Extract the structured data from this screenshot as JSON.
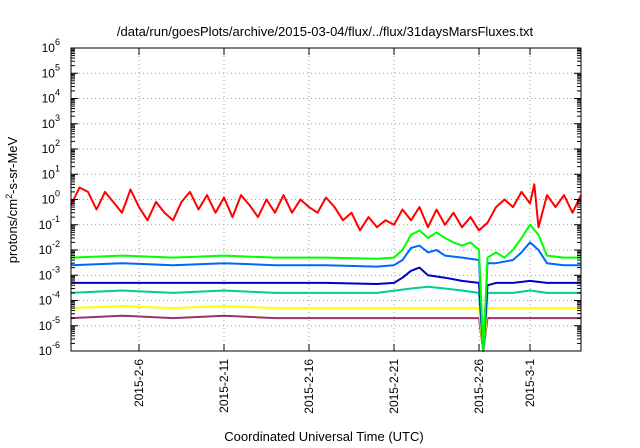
{
  "chart_data": {
    "type": "line",
    "title": "/data/run/goesPlots/archive/2015-03-04/flux/../flux/31daysMarsFluxes.txt",
    "xlabel": "Coordinated Universal Time (UTC)",
    "ylabel_parts": {
      "base": "protons/cm",
      "sup": "2",
      "rest": "-s-sr-MeV"
    },
    "yscale": "log",
    "ylim_exponents": [
      -6,
      6
    ],
    "ytick_base": "10",
    "ytick_exponents": [
      "-6",
      "-5",
      "-4",
      "-3",
      "-2",
      "-1",
      "0",
      "1",
      "2",
      "3",
      "4",
      "5",
      "6"
    ],
    "xlim": [
      "2015-02-02",
      "2015-03-04"
    ],
    "x_ticks": [
      {
        "label": "2015-2-6",
        "date": "2015-02-06"
      },
      {
        "label": "2015-2-11",
        "date": "2015-02-11"
      },
      {
        "label": "2015-2-16",
        "date": "2015-02-16"
      },
      {
        "label": "2015-2-21",
        "date": "2015-02-21"
      },
      {
        "label": "2015-2-26",
        "date": "2015-02-26"
      },
      {
        "label": "2015-3-1",
        "date": "2015-03-01"
      }
    ],
    "grid": true,
    "colors": [
      "#ff0000",
      "#00ff00",
      "#0066ff",
      "#0000cc",
      "#00cc99",
      "#ffff00",
      "#993366"
    ],
    "series": [
      {
        "color": "#ff0000",
        "values": [
          {
            "x": "2015-02-02",
            "y": 0.6
          },
          {
            "x": "2015-02-02T12",
            "y": 3.0
          },
          {
            "x": "2015-02-03",
            "y": 2.0
          },
          {
            "x": "2015-02-03T12",
            "y": 0.4
          },
          {
            "x": "2015-02-04",
            "y": 2.0
          },
          {
            "x": "2015-02-05",
            "y": 0.3
          },
          {
            "x": "2015-02-05T12",
            "y": 2.5
          },
          {
            "x": "2015-02-06",
            "y": 0.5
          },
          {
            "x": "2015-02-06T12",
            "y": 0.15
          },
          {
            "x": "2015-02-07",
            "y": 0.8
          },
          {
            "x": "2015-02-07T12",
            "y": 0.3
          },
          {
            "x": "2015-02-08",
            "y": 0.15
          },
          {
            "x": "2015-02-08T12",
            "y": 0.8
          },
          {
            "x": "2015-02-09",
            "y": 2.0
          },
          {
            "x": "2015-02-09T12",
            "y": 0.4
          },
          {
            "x": "2015-02-10",
            "y": 1.5
          },
          {
            "x": "2015-02-10T12",
            "y": 0.3
          },
          {
            "x": "2015-02-11",
            "y": 1.2
          },
          {
            "x": "2015-02-11T12",
            "y": 0.2
          },
          {
            "x": "2015-02-12",
            "y": 1.5
          },
          {
            "x": "2015-02-12T12",
            "y": 0.6
          },
          {
            "x": "2015-02-13",
            "y": 0.2
          },
          {
            "x": "2015-02-13T12",
            "y": 1.0
          },
          {
            "x": "2015-02-14",
            "y": 0.3
          },
          {
            "x": "2015-02-14T12",
            "y": 1.5
          },
          {
            "x": "2015-02-15",
            "y": 0.3
          },
          {
            "x": "2015-02-15T12",
            "y": 1.0
          },
          {
            "x": "2015-02-16",
            "y": 0.5
          },
          {
            "x": "2015-02-16T12",
            "y": 0.3
          },
          {
            "x": "2015-02-17",
            "y": 1.2
          },
          {
            "x": "2015-02-17T12",
            "y": 0.5
          },
          {
            "x": "2015-02-18",
            "y": 0.15
          },
          {
            "x": "2015-02-18T12",
            "y": 0.3
          },
          {
            "x": "2015-02-19",
            "y": 0.06
          },
          {
            "x": "2015-02-19T12",
            "y": 0.2
          },
          {
            "x": "2015-02-20",
            "y": 0.08
          },
          {
            "x": "2015-02-20T12",
            "y": 0.15
          },
          {
            "x": "2015-02-21",
            "y": 0.1
          },
          {
            "x": "2015-02-21T12",
            "y": 0.4
          },
          {
            "x": "2015-02-22",
            "y": 0.15
          },
          {
            "x": "2015-02-22T12",
            "y": 0.5
          },
          {
            "x": "2015-02-23",
            "y": 0.08
          },
          {
            "x": "2015-02-23T12",
            "y": 0.4
          },
          {
            "x": "2015-02-24",
            "y": 0.1
          },
          {
            "x": "2015-02-24T12",
            "y": 0.3
          },
          {
            "x": "2015-02-25",
            "y": 0.08
          },
          {
            "x": "2015-02-25T12",
            "y": 0.2
          },
          {
            "x": "2015-02-26",
            "y": 0.06
          },
          {
            "x": "2015-02-26T12",
            "y": 0.12
          },
          {
            "x": "2015-02-27",
            "y": 0.5
          },
          {
            "x": "2015-02-27T12",
            "y": 1.0
          },
          {
            "x": "2015-02-28",
            "y": 0.5
          },
          {
            "x": "2015-02-28T12",
            "y": 2.0
          },
          {
            "x": "2015-03-01",
            "y": 0.7
          },
          {
            "x": "2015-03-01T06",
            "y": 4.0
          },
          {
            "x": "2015-03-01T12",
            "y": 0.08
          },
          {
            "x": "2015-03-02",
            "y": 1.5
          },
          {
            "x": "2015-03-02T12",
            "y": 0.5
          },
          {
            "x": "2015-03-03",
            "y": 1.5
          },
          {
            "x": "2015-03-03T12",
            "y": 0.3
          },
          {
            "x": "2015-03-04",
            "y": 1.5
          }
        ]
      },
      {
        "color": "#00ff00",
        "values": [
          {
            "x": "2015-02-02",
            "y": 0.005
          },
          {
            "x": "2015-02-05",
            "y": 0.006
          },
          {
            "x": "2015-02-08",
            "y": 0.005
          },
          {
            "x": "2015-02-11",
            "y": 0.006
          },
          {
            "x": "2015-02-14",
            "y": 0.005
          },
          {
            "x": "2015-02-17",
            "y": 0.005
          },
          {
            "x": "2015-02-20",
            "y": 0.0045
          },
          {
            "x": "2015-02-21",
            "y": 0.005
          },
          {
            "x": "2015-02-21T12",
            "y": 0.01
          },
          {
            "x": "2015-02-22",
            "y": 0.04
          },
          {
            "x": "2015-02-22T12",
            "y": 0.06
          },
          {
            "x": "2015-02-23",
            "y": 0.03
          },
          {
            "x": "2015-02-23T12",
            "y": 0.05
          },
          {
            "x": "2015-02-24",
            "y": 0.03
          },
          {
            "x": "2015-02-24T12",
            "y": 0.02
          },
          {
            "x": "2015-02-25",
            "y": 0.015
          },
          {
            "x": "2015-02-25T12",
            "y": 0.02
          },
          {
            "x": "2015-02-26",
            "y": 0.01
          },
          {
            "x": "2015-02-26T06",
            "y": 1e-06
          },
          {
            "x": "2015-02-26T12",
            "y": 0.005
          },
          {
            "x": "2015-02-27",
            "y": 0.008
          },
          {
            "x": "2015-02-27T12",
            "y": 0.005
          },
          {
            "x": "2015-02-28",
            "y": 0.01
          },
          {
            "x": "2015-02-28T12",
            "y": 0.03
          },
          {
            "x": "2015-03-01",
            "y": 0.1
          },
          {
            "x": "2015-03-01T12",
            "y": 0.04
          },
          {
            "x": "2015-03-02",
            "y": 0.006
          },
          {
            "x": "2015-03-03",
            "y": 0.005
          },
          {
            "x": "2015-03-04",
            "y": 0.005
          }
        ]
      },
      {
        "color": "#0066ff",
        "values": [
          {
            "x": "2015-02-02",
            "y": 0.0025
          },
          {
            "x": "2015-02-05",
            "y": 0.003
          },
          {
            "x": "2015-02-08",
            "y": 0.0025
          },
          {
            "x": "2015-02-11",
            "y": 0.003
          },
          {
            "x": "2015-02-14",
            "y": 0.0025
          },
          {
            "x": "2015-02-17",
            "y": 0.0025
          },
          {
            "x": "2015-02-20",
            "y": 0.0022
          },
          {
            "x": "2015-02-21",
            "y": 0.0025
          },
          {
            "x": "2015-02-21T12",
            "y": 0.004
          },
          {
            "x": "2015-02-22",
            "y": 0.012
          },
          {
            "x": "2015-02-22T12",
            "y": 0.015
          },
          {
            "x": "2015-02-23",
            "y": 0.008
          },
          {
            "x": "2015-02-23T12",
            "y": 0.01
          },
          {
            "x": "2015-02-24",
            "y": 0.006
          },
          {
            "x": "2015-02-25",
            "y": 0.005
          },
          {
            "x": "2015-02-26",
            "y": 0.004
          },
          {
            "x": "2015-02-26T06",
            "y": 1e-06
          },
          {
            "x": "2015-02-26T12",
            "y": 0.003
          },
          {
            "x": "2015-02-27",
            "y": 0.003
          },
          {
            "x": "2015-02-28",
            "y": 0.004
          },
          {
            "x": "2015-02-28T12",
            "y": 0.008
          },
          {
            "x": "2015-03-01",
            "y": 0.02
          },
          {
            "x": "2015-03-01T12",
            "y": 0.01
          },
          {
            "x": "2015-03-02",
            "y": 0.003
          },
          {
            "x": "2015-03-03",
            "y": 0.0025
          },
          {
            "x": "2015-03-04",
            "y": 0.0025
          }
        ]
      },
      {
        "color": "#0000cc",
        "values": [
          {
            "x": "2015-02-02",
            "y": 0.0005
          },
          {
            "x": "2015-02-05",
            "y": 0.0005
          },
          {
            "x": "2015-02-08",
            "y": 0.0005
          },
          {
            "x": "2015-02-11",
            "y": 0.0005
          },
          {
            "x": "2015-02-14",
            "y": 0.0005
          },
          {
            "x": "2015-02-17",
            "y": 0.0005
          },
          {
            "x": "2015-02-20",
            "y": 0.00045
          },
          {
            "x": "2015-02-21",
            "y": 0.0005
          },
          {
            "x": "2015-02-21T12",
            "y": 0.0008
          },
          {
            "x": "2015-02-22",
            "y": 0.0015
          },
          {
            "x": "2015-02-22T12",
            "y": 0.002
          },
          {
            "x": "2015-02-23",
            "y": 0.001
          },
          {
            "x": "2015-02-24",
            "y": 0.0008
          },
          {
            "x": "2015-02-25",
            "y": 0.0006
          },
          {
            "x": "2015-02-26",
            "y": 0.0005
          },
          {
            "x": "2015-02-26T06",
            "y": 1e-06
          },
          {
            "x": "2015-02-26T12",
            "y": 0.0004
          },
          {
            "x": "2015-02-27",
            "y": 0.0005
          },
          {
            "x": "2015-02-28",
            "y": 0.0005
          },
          {
            "x": "2015-03-01",
            "y": 0.0006
          },
          {
            "x": "2015-03-02",
            "y": 0.0005
          },
          {
            "x": "2015-03-03",
            "y": 0.0005
          },
          {
            "x": "2015-03-04",
            "y": 0.0005
          }
        ]
      },
      {
        "color": "#00cc99",
        "values": [
          {
            "x": "2015-02-02",
            "y": 0.0002
          },
          {
            "x": "2015-02-05",
            "y": 0.00025
          },
          {
            "x": "2015-02-08",
            "y": 0.0002
          },
          {
            "x": "2015-02-11",
            "y": 0.00025
          },
          {
            "x": "2015-02-14",
            "y": 0.0002
          },
          {
            "x": "2015-02-17",
            "y": 0.0002
          },
          {
            "x": "2015-02-20",
            "y": 0.0002
          },
          {
            "x": "2015-02-22",
            "y": 0.0003
          },
          {
            "x": "2015-02-23",
            "y": 0.00035
          },
          {
            "x": "2015-02-24",
            "y": 0.0003
          },
          {
            "x": "2015-02-25",
            "y": 0.00025
          },
          {
            "x": "2015-02-26",
            "y": 0.0002
          },
          {
            "x": "2015-02-26T06",
            "y": 1e-06
          },
          {
            "x": "2015-02-26T12",
            "y": 0.0002
          },
          {
            "x": "2015-02-28",
            "y": 0.0002
          },
          {
            "x": "2015-03-01",
            "y": 0.00025
          },
          {
            "x": "2015-03-02",
            "y": 0.0002
          },
          {
            "x": "2015-03-04",
            "y": 0.0002
          }
        ]
      },
      {
        "color": "#ffff00",
        "values": [
          {
            "x": "2015-02-02",
            "y": 5e-05
          },
          {
            "x": "2015-02-05",
            "y": 6e-05
          },
          {
            "x": "2015-02-08",
            "y": 5e-05
          },
          {
            "x": "2015-02-11",
            "y": 6e-05
          },
          {
            "x": "2015-02-14",
            "y": 5e-05
          },
          {
            "x": "2015-02-17",
            "y": 5e-05
          },
          {
            "x": "2015-02-20",
            "y": 5e-05
          },
          {
            "x": "2015-02-23",
            "y": 5e-05
          },
          {
            "x": "2015-02-26",
            "y": 5e-05
          },
          {
            "x": "2015-02-26T06",
            "y": 1e-06
          },
          {
            "x": "2015-02-26T12",
            "y": 5e-05
          },
          {
            "x": "2015-03-01",
            "y": 5e-05
          },
          {
            "x": "2015-03-04",
            "y": 5e-05
          }
        ]
      },
      {
        "color": "#993366",
        "values": [
          {
            "x": "2015-02-02",
            "y": 2e-05
          },
          {
            "x": "2015-02-05",
            "y": 2.5e-05
          },
          {
            "x": "2015-02-08",
            "y": 2e-05
          },
          {
            "x": "2015-02-11",
            "y": 2.5e-05
          },
          {
            "x": "2015-02-14",
            "y": 2e-05
          },
          {
            "x": "2015-02-17",
            "y": 2e-05
          },
          {
            "x": "2015-02-20",
            "y": 2e-05
          },
          {
            "x": "2015-02-23",
            "y": 2e-05
          },
          {
            "x": "2015-02-26",
            "y": 2e-05
          },
          {
            "x": "2015-02-26T06",
            "y": 1e-06
          },
          {
            "x": "2015-02-26T12",
            "y": 2e-05
          },
          {
            "x": "2015-03-01",
            "y": 2e-05
          },
          {
            "x": "2015-03-04",
            "y": 2e-05
          }
        ]
      }
    ]
  }
}
